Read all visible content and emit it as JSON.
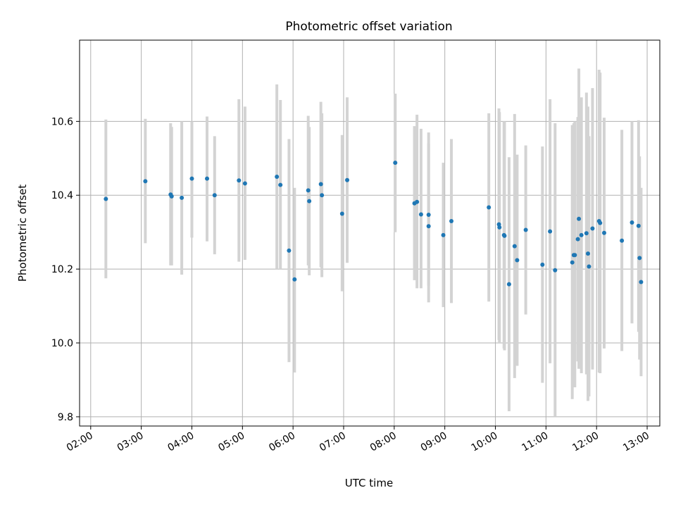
{
  "chart_data": {
    "type": "scatter",
    "title": "Photometric offset variation",
    "xlabel": "UTC time",
    "ylabel": "Photometric offset",
    "grid": true,
    "x_unit": "hours UTC",
    "xlim": [
      1.78,
      13.25
    ],
    "ylim": [
      9.775,
      10.82
    ],
    "x_ticks": [
      2,
      3,
      4,
      5,
      6,
      7,
      8,
      9,
      10,
      11,
      12,
      13
    ],
    "x_tick_labels": [
      "02:00",
      "03:00",
      "04:00",
      "05:00",
      "06:00",
      "07:00",
      "08:00",
      "09:00",
      "10:00",
      "11:00",
      "12:00",
      "13:00"
    ],
    "y_ticks": [
      9.8,
      10.0,
      10.2,
      10.4,
      10.6
    ],
    "y_tick_labels": [
      "9.8",
      "10.0",
      "10.2",
      "10.4",
      "10.6"
    ],
    "error_bar_color": "#d3d3d3",
    "marker_color": "#1f77b4",
    "points": [
      {
        "x": 2.3,
        "y": 10.39,
        "lo": 10.175,
        "hi": 10.605
      },
      {
        "x": 3.08,
        "y": 10.438,
        "lo": 10.27,
        "hi": 10.607
      },
      {
        "x": 3.58,
        "y": 10.402,
        "lo": 10.21,
        "hi": 10.595
      },
      {
        "x": 3.6,
        "y": 10.397,
        "lo": 10.21,
        "hi": 10.585
      },
      {
        "x": 3.8,
        "y": 10.393,
        "lo": 10.185,
        "hi": 10.6
      },
      {
        "x": 4.0,
        "y": 10.445,
        "lo": 10.285,
        "hi": 10.6
      },
      {
        "x": 4.3,
        "y": 10.445,
        "lo": 10.275,
        "hi": 10.613
      },
      {
        "x": 4.45,
        "y": 10.4,
        "lo": 10.24,
        "hi": 10.56
      },
      {
        "x": 4.93,
        "y": 10.44,
        "lo": 10.22,
        "hi": 10.66
      },
      {
        "x": 5.05,
        "y": 10.432,
        "lo": 10.225,
        "hi": 10.64
      },
      {
        "x": 5.68,
        "y": 10.45,
        "lo": 10.2,
        "hi": 10.7
      },
      {
        "x": 5.75,
        "y": 10.428,
        "lo": 10.2,
        "hi": 10.658
      },
      {
        "x": 5.92,
        "y": 10.25,
        "lo": 9.948,
        "hi": 10.552
      },
      {
        "x": 6.03,
        "y": 10.172,
        "lo": 9.92,
        "hi": 10.42
      },
      {
        "x": 6.3,
        "y": 10.413,
        "lo": 10.21,
        "hi": 10.615
      },
      {
        "x": 6.32,
        "y": 10.384,
        "lo": 10.183,
        "hi": 10.585
      },
      {
        "x": 6.55,
        "y": 10.43,
        "lo": 10.205,
        "hi": 10.653
      },
      {
        "x": 6.57,
        "y": 10.4,
        "lo": 10.178,
        "hi": 10.622
      },
      {
        "x": 6.97,
        "y": 10.35,
        "lo": 10.14,
        "hi": 10.563
      },
      {
        "x": 7.07,
        "y": 10.441,
        "lo": 10.217,
        "hi": 10.665
      },
      {
        "x": 8.02,
        "y": 10.488,
        "lo": 10.3,
        "hi": 10.675
      },
      {
        "x": 8.4,
        "y": 10.378,
        "lo": 10.17,
        "hi": 10.587
      },
      {
        "x": 8.45,
        "y": 10.382,
        "lo": 10.148,
        "hi": 10.618
      },
      {
        "x": 8.53,
        "y": 10.348,
        "lo": 10.148,
        "hi": 10.58
      },
      {
        "x": 8.68,
        "y": 10.316,
        "lo": 10.11,
        "hi": 10.57
      },
      {
        "x": 8.68,
        "y": 10.347,
        "lo": 10.155,
        "hi": 10.54
      },
      {
        "x": 8.97,
        "y": 10.292,
        "lo": 10.097,
        "hi": 10.488
      },
      {
        "x": 9.13,
        "y": 10.33,
        "lo": 10.108,
        "hi": 10.552
      },
      {
        "x": 9.87,
        "y": 10.367,
        "lo": 10.112,
        "hi": 10.622
      },
      {
        "x": 10.07,
        "y": 10.321,
        "lo": 10.008,
        "hi": 10.635
      },
      {
        "x": 10.08,
        "y": 10.313,
        "lo": 10.0,
        "hi": 10.625
      },
      {
        "x": 10.17,
        "y": 10.292,
        "lo": 9.985,
        "hi": 10.6
      },
      {
        "x": 10.18,
        "y": 10.29,
        "lo": 9.98,
        "hi": 10.6
      },
      {
        "x": 10.27,
        "y": 10.159,
        "lo": 9.815,
        "hi": 10.503
      },
      {
        "x": 10.38,
        "y": 10.262,
        "lo": 9.905,
        "hi": 10.62
      },
      {
        "x": 10.43,
        "y": 10.224,
        "lo": 9.938,
        "hi": 10.51
      },
      {
        "x": 10.6,
        "y": 10.306,
        "lo": 10.077,
        "hi": 10.535
      },
      {
        "x": 10.93,
        "y": 10.212,
        "lo": 9.892,
        "hi": 10.532
      },
      {
        "x": 11.08,
        "y": 10.302,
        "lo": 9.945,
        "hi": 10.66
      },
      {
        "x": 11.18,
        "y": 10.197,
        "lo": 9.8,
        "hi": 10.595
      },
      {
        "x": 11.52,
        "y": 10.218,
        "lo": 9.848,
        "hi": 10.59
      },
      {
        "x": 11.55,
        "y": 10.238,
        "lo": 9.88,
        "hi": 10.595
      },
      {
        "x": 11.57,
        "y": 10.238,
        "lo": 9.88,
        "hi": 10.6
      },
      {
        "x": 11.63,
        "y": 10.281,
        "lo": 9.95,
        "hi": 10.612
      },
      {
        "x": 11.65,
        "y": 10.336,
        "lo": 9.93,
        "hi": 10.743
      },
      {
        "x": 11.7,
        "y": 10.292,
        "lo": 9.918,
        "hi": 10.665
      },
      {
        "x": 11.8,
        "y": 10.297,
        "lo": 9.915,
        "hi": 10.678
      },
      {
        "x": 11.83,
        "y": 10.242,
        "lo": 9.843,
        "hi": 10.64
      },
      {
        "x": 11.85,
        "y": 10.207,
        "lo": 9.855,
        "hi": 10.56
      },
      {
        "x": 11.92,
        "y": 10.31,
        "lo": 9.928,
        "hi": 10.69
      },
      {
        "x": 12.05,
        "y": 10.33,
        "lo": 9.92,
        "hi": 10.74
      },
      {
        "x": 12.07,
        "y": 10.325,
        "lo": 9.918,
        "hi": 10.732
      },
      {
        "x": 12.15,
        "y": 10.298,
        "lo": 9.985,
        "hi": 10.61
      },
      {
        "x": 12.5,
        "y": 10.277,
        "lo": 9.978,
        "hi": 10.577
      },
      {
        "x": 12.7,
        "y": 10.326,
        "lo": 10.053,
        "hi": 10.6
      },
      {
        "x": 12.83,
        "y": 10.317,
        "lo": 10.03,
        "hi": 10.603
      },
      {
        "x": 12.85,
        "y": 10.23,
        "lo": 9.955,
        "hi": 10.505
      },
      {
        "x": 12.88,
        "y": 10.165,
        "lo": 9.91,
        "hi": 10.42
      }
    ]
  }
}
